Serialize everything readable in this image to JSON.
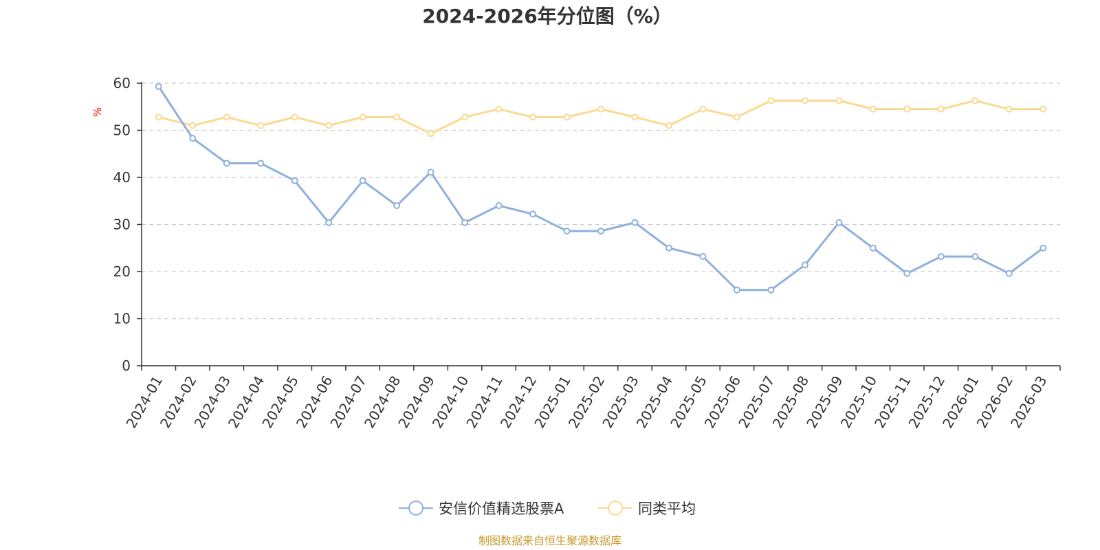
{
  "chart_data": {
    "type": "line",
    "title": "2024-2026年分位图（%）",
    "ylabel": "%",
    "ylim": [
      0,
      60
    ],
    "yticks": [
      0,
      10,
      20,
      30,
      40,
      50,
      60
    ],
    "grid": true,
    "legend_placement": "bottom-center",
    "categories": [
      "2024-01",
      "2024-02",
      "2024-03",
      "2024-04",
      "2024-05",
      "2024-06",
      "2024-07",
      "2024-08",
      "2024-09",
      "2024-10",
      "2024-11",
      "2024-12",
      "2025-01",
      "2025-02",
      "2025-03",
      "2025-04",
      "2025-05",
      "2025-06",
      "2025-07",
      "2025-08",
      "2025-09",
      "2025-10",
      "2025-11",
      "2025-12",
      "2026-01",
      "2026-02",
      "2026-03"
    ],
    "series": [
      {
        "name": "安信价值精选股票A",
        "color": "#8eb0dc",
        "values": [
          59.3,
          48.3,
          43.0,
          43.0,
          39.3,
          30.4,
          39.3,
          34.0,
          41.1,
          30.4,
          34.0,
          32.2,
          28.6,
          28.6,
          30.4,
          25.0,
          23.2,
          16.1,
          16.1,
          21.4,
          30.4,
          25.0,
          19.6,
          23.2,
          23.2,
          19.6,
          25.0
        ]
      },
      {
        "name": "同类平均",
        "color": "#fbd98f",
        "values": [
          52.8,
          51.0,
          52.8,
          51.0,
          52.8,
          51.0,
          52.8,
          52.8,
          49.3,
          52.8,
          54.5,
          52.8,
          52.8,
          54.5,
          52.8,
          51.0,
          54.5,
          52.8,
          56.3,
          56.3,
          56.3,
          54.5,
          54.5,
          54.5,
          56.3,
          54.5,
          54.5
        ]
      }
    ]
  },
  "source": "制图数据来自恒生聚源数据库"
}
